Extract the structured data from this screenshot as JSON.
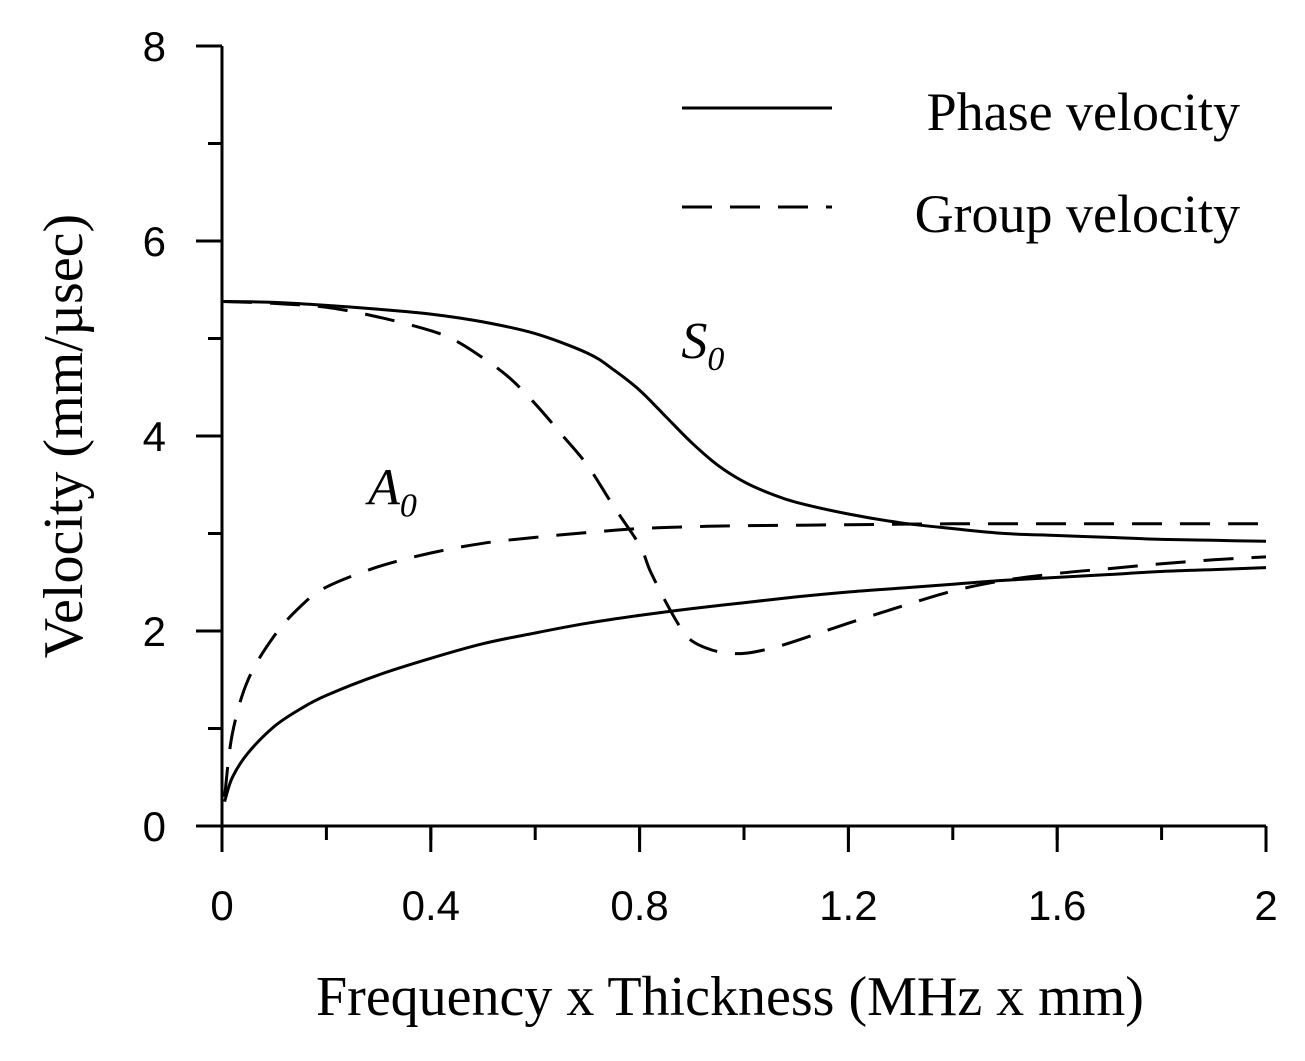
{
  "chart_data": {
    "type": "line",
    "title": "",
    "xlabel": "Frequency x Thickness (MHz x mm)",
    "ylabel": "Velocity (mm/µsec)",
    "xlim": [
      0,
      2
    ],
    "ylim": [
      0,
      8
    ],
    "xticks": [
      0,
      0.4,
      0.8,
      1.2,
      1.6,
      2
    ],
    "xtick_labels": [
      "0",
      "0.4",
      "0.8",
      "1.2",
      "1.6",
      "2"
    ],
    "yticks": [
      0,
      2,
      4,
      6,
      8
    ],
    "ytick_labels": [
      "0",
      "2",
      "4",
      "6",
      "8"
    ],
    "x_minor_step": 0.2,
    "y_minor_step": 1,
    "grid": false,
    "legend": {
      "position": "top-right",
      "entries": [
        {
          "label": "Phase velocity",
          "style": "solid"
        },
        {
          "label": "Group velocity",
          "style": "dashed"
        }
      ]
    },
    "annotations": [
      {
        "main": "S",
        "sub": "0",
        "x": 0.88,
        "y": 4.8
      },
      {
        "main": "A",
        "sub": "0",
        "x": 0.28,
        "y": 3.3
      }
    ],
    "series": [
      {
        "name": "S0 phase velocity",
        "mode": "S0",
        "kind": "phase",
        "style": "solid",
        "x": [
          0,
          0.1,
          0.2,
          0.3,
          0.4,
          0.5,
          0.6,
          0.7,
          0.75,
          0.8,
          0.85,
          0.9,
          0.95,
          1.0,
          1.05,
          1.1,
          1.2,
          1.3,
          1.4,
          1.5,
          1.6,
          1.7,
          1.8,
          1.9,
          2.0
        ],
        "y": [
          5.38,
          5.37,
          5.34,
          5.3,
          5.25,
          5.17,
          5.05,
          4.85,
          4.68,
          4.47,
          4.2,
          3.93,
          3.7,
          3.53,
          3.41,
          3.32,
          3.2,
          3.11,
          3.05,
          3.0,
          2.98,
          2.96,
          2.94,
          2.93,
          2.92
        ]
      },
      {
        "name": "S0 group velocity",
        "mode": "S0",
        "kind": "group",
        "style": "dashed",
        "x": [
          0,
          0.1,
          0.2,
          0.3,
          0.4,
          0.45,
          0.5,
          0.55,
          0.6,
          0.65,
          0.7,
          0.75,
          0.8,
          0.82,
          0.85,
          0.88,
          0.9,
          0.93,
          0.96,
          1.0,
          1.05,
          1.1,
          1.2,
          1.3,
          1.4,
          1.5,
          1.6,
          1.7,
          1.8,
          1.9,
          2.0
        ],
        "y": [
          5.38,
          5.36,
          5.32,
          5.22,
          5.08,
          4.97,
          4.8,
          4.6,
          4.33,
          4.02,
          3.7,
          3.28,
          2.88,
          2.62,
          2.3,
          2.02,
          1.9,
          1.82,
          1.78,
          1.77,
          1.82,
          1.9,
          2.08,
          2.25,
          2.41,
          2.52,
          2.59,
          2.64,
          2.69,
          2.73,
          2.76
        ]
      },
      {
        "name": "A0 phase velocity",
        "mode": "A0",
        "kind": "phase",
        "style": "solid",
        "x": [
          0.005,
          0.02,
          0.05,
          0.1,
          0.15,
          0.2,
          0.3,
          0.4,
          0.5,
          0.6,
          0.7,
          0.8,
          0.9,
          1.0,
          1.1,
          1.2,
          1.3,
          1.4,
          1.5,
          1.6,
          1.7,
          1.8,
          1.9,
          2.0
        ],
        "y": [
          0.25,
          0.5,
          0.75,
          1.02,
          1.2,
          1.34,
          1.55,
          1.72,
          1.87,
          1.98,
          2.08,
          2.16,
          2.23,
          2.29,
          2.35,
          2.4,
          2.44,
          2.48,
          2.52,
          2.55,
          2.58,
          2.61,
          2.63,
          2.65
        ]
      },
      {
        "name": "A0 group velocity",
        "mode": "A0",
        "kind": "group",
        "style": "dashed",
        "x": [
          0.005,
          0.02,
          0.05,
          0.1,
          0.15,
          0.2,
          0.3,
          0.4,
          0.5,
          0.6,
          0.7,
          0.8,
          0.9,
          1.0,
          1.2,
          1.4,
          1.6,
          1.8,
          2.0
        ],
        "y": [
          0.3,
          0.95,
          1.5,
          1.95,
          2.25,
          2.45,
          2.66,
          2.8,
          2.9,
          2.96,
          3.01,
          3.05,
          3.07,
          3.08,
          3.09,
          3.1,
          3.1,
          3.1,
          3.1
        ]
      }
    ]
  }
}
